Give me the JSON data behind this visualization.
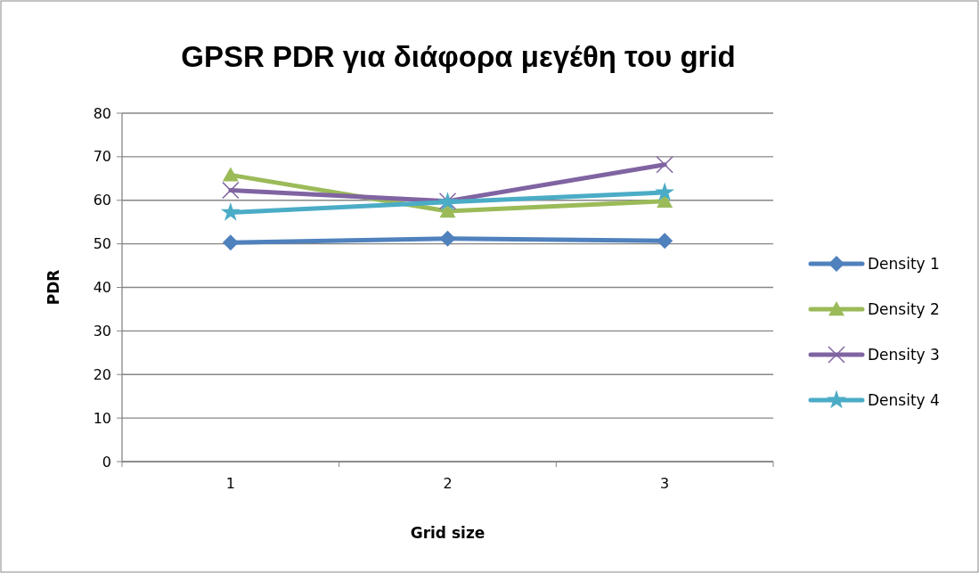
{
  "chart_data": {
    "type": "line",
    "title": "GPSR PDR για διάφορα μεγέθη του grid",
    "xlabel": "Grid size",
    "ylabel": "PDR",
    "categories": [
      "1",
      "2",
      "3"
    ],
    "series": [
      {
        "name": "Density 1",
        "color": "#4f81bd",
        "marker": "diamond",
        "values": [
          50.3,
          51.2,
          50.7
        ]
      },
      {
        "name": "Density 2",
        "color": "#9bbb59",
        "marker": "triangle",
        "values": [
          65.8,
          57.5,
          59.8
        ]
      },
      {
        "name": "Density 3",
        "color": "#8064a2",
        "marker": "cross",
        "values": [
          62.3,
          59.8,
          68.2
        ]
      },
      {
        "name": "Density 4",
        "color": "#4bacc6",
        "marker": "star",
        "values": [
          57.2,
          59.6,
          61.8
        ]
      }
    ],
    "ylim": [
      0,
      80
    ],
    "yticks": [
      0,
      10,
      20,
      30,
      40,
      50,
      60,
      70,
      80
    ],
    "grid": "y",
    "legend": "right",
    "line_style": "solid"
  }
}
